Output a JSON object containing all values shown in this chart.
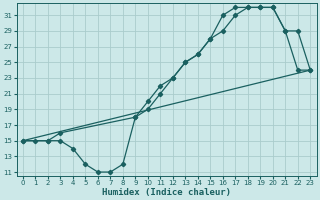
{
  "xlabel": "Humidex (Indice chaleur)",
  "bg_color": "#cce8e8",
  "grid_color": "#aacccc",
  "line_color": "#1a6060",
  "xlim": [
    -0.5,
    23.5
  ],
  "ylim": [
    10.5,
    32.5
  ],
  "xticks": [
    0,
    1,
    2,
    3,
    4,
    5,
    6,
    7,
    8,
    9,
    10,
    11,
    12,
    13,
    14,
    15,
    16,
    17,
    18,
    19,
    20,
    21,
    22,
    23
  ],
  "yticks": [
    11,
    13,
    15,
    17,
    19,
    21,
    23,
    25,
    27,
    29,
    31
  ],
  "curve1_x": [
    0,
    1,
    2,
    3,
    4,
    5,
    6,
    7,
    8,
    9,
    10,
    11,
    12,
    13,
    14,
    15,
    16,
    17,
    18,
    19,
    20,
    21,
    22,
    23
  ],
  "curve1_y": [
    15,
    15,
    15,
    15,
    14,
    12,
    11,
    11,
    12,
    18,
    20,
    22,
    23,
    25,
    26,
    28,
    31,
    32,
    32,
    32,
    32,
    29,
    24,
    24
  ],
  "curve2_x": [
    0,
    2,
    3,
    9,
    10,
    11,
    12,
    13,
    14,
    15,
    16,
    17,
    18,
    19,
    20,
    21,
    22,
    23
  ],
  "curve2_y": [
    15,
    15,
    16,
    18,
    19,
    21,
    23,
    25,
    26,
    28,
    29,
    31,
    32,
    32,
    32,
    29,
    29,
    24
  ],
  "curve3_x": [
    0,
    23
  ],
  "curve3_y": [
    15,
    24
  ]
}
